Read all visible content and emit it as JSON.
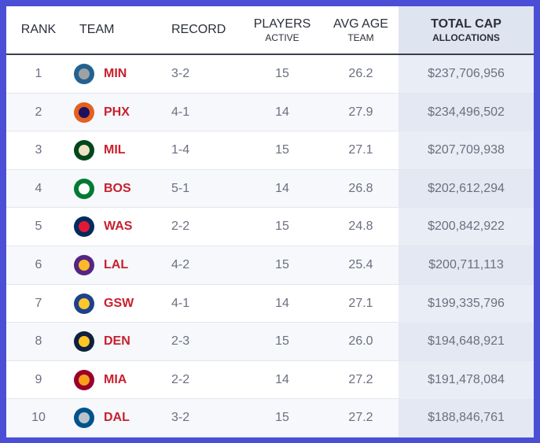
{
  "table": {
    "header": [
      {
        "main": "RANK"
      },
      {
        "main": "TEAM"
      },
      {
        "main": "RECORD"
      },
      {
        "main": "PLAYERS",
        "sub": "ACTIVE"
      },
      {
        "main": "AVG AGE",
        "sub": "TEAM"
      },
      {
        "main": "TOTAL CAP",
        "sub": "ALLOCATIONS"
      }
    ],
    "rows": [
      [
        "1",
        "MIN",
        "3-2",
        "15",
        "26.2",
        "$237,706,956"
      ],
      [
        "2",
        "PHX",
        "4-1",
        "14",
        "27.9",
        "$234,496,502"
      ],
      [
        "3",
        "MIL",
        "1-4",
        "15",
        "27.1",
        "$207,709,938"
      ],
      [
        "4",
        "BOS",
        "5-1",
        "14",
        "26.8",
        "$202,612,294"
      ],
      [
        "5",
        "WAS",
        "2-2",
        "15",
        "24.8",
        "$200,842,922"
      ],
      [
        "6",
        "LAL",
        "4-2",
        "15",
        "25.4",
        "$200,711,113"
      ],
      [
        "7",
        "GSW",
        "4-1",
        "14",
        "27.1",
        "$199,335,796"
      ],
      [
        "8",
        "DEN",
        "2-3",
        "15",
        "26.0",
        "$194,648,921"
      ],
      [
        "9",
        "MIA",
        "2-2",
        "14",
        "27.2",
        "$191,478,084"
      ],
      [
        "10",
        "DAL",
        "3-2",
        "15",
        "27.2",
        "$188,846,761"
      ]
    ]
  }
}
